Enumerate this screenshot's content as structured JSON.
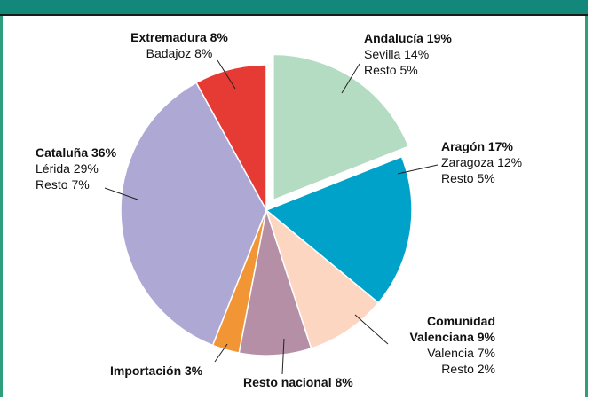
{
  "chart_data": {
    "type": "pie",
    "categories": [
      "Andalucía",
      "Aragón",
      "Comunidad Valenciana",
      "Resto nacional",
      "Importación",
      "Cataluña",
      "Extremadura"
    ],
    "values": [
      19,
      17,
      9,
      8,
      3,
      36,
      8
    ],
    "value_labels": [
      "19%",
      "17%",
      "9%",
      "8%",
      "3%",
      "36%",
      "8%"
    ],
    "colors": [
      "#b3dcc3",
      "#00a2c9",
      "#fdd6c2",
      "#b48fa6",
      "#f29535",
      "#aea9d4",
      "#e63a34"
    ],
    "details": [
      [
        "Sevilla 14%",
        "Resto 5%"
      ],
      [
        "Zaragoza 12%",
        "Resto 5%"
      ],
      [
        "Valencia 7%",
        "Resto 2%"
      ],
      [],
      [],
      [
        "Lérida 29%",
        "Resto 7%"
      ],
      [
        "Badajoz 8%"
      ]
    ],
    "exploded": "Andalucía"
  }
}
